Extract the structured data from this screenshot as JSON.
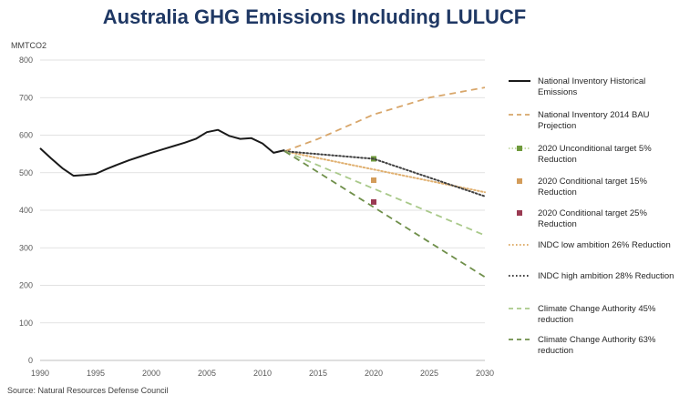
{
  "title": "Australia GHG Emissions Including LULUCF",
  "source": "Source: Natural Resources Defense Council",
  "chart_data": {
    "type": "line",
    "title": "Australia GHG Emissions Including LULUCF",
    "ylabel": "MMTCO2",
    "xlabel": "",
    "xlim": [
      1990,
      2030
    ],
    "ylim": [
      0,
      800
    ],
    "x_ticks": [
      1990,
      1995,
      2000,
      2005,
      2010,
      2015,
      2020,
      2025,
      2030
    ],
    "y_ticks": [
      0,
      100,
      200,
      300,
      400,
      500,
      600,
      700,
      800
    ],
    "grid": true,
    "legend_position": "right",
    "series": [
      {
        "name": "National Inventory Historical Emissions",
        "style": "solid",
        "color": "#1a1a1a",
        "kind": "line",
        "x": [
          1990,
          1991,
          1992,
          1993,
          1994,
          1995,
          1996,
          1997,
          1998,
          1999,
          2000,
          2001,
          2002,
          2003,
          2004,
          2005,
          2006,
          2007,
          2008,
          2009,
          2010,
          2011,
          2012
        ],
        "y": [
          565,
          538,
          512,
          492,
          494,
          497,
          510,
          522,
          533,
          543,
          553,
          562,
          571,
          580,
          590,
          608,
          614,
          598,
          590,
          592,
          578,
          553,
          560
        ]
      },
      {
        "name": "National Inventory 2014 BAU Projection",
        "style": "dash",
        "color": "#d8a66a",
        "kind": "line",
        "x": [
          2012,
          2015,
          2020,
          2025,
          2030
        ],
        "y": [
          557,
          590,
          655,
          700,
          727
        ]
      },
      {
        "name": "2020 Unconditional target 5% Reduction",
        "style": "marker",
        "color": "#6f9a3c",
        "kind": "point",
        "dotted": true,
        "x": [
          2020
        ],
        "y": [
          537
        ]
      },
      {
        "name": "2020 Conditional target 15% Reduction",
        "style": "marker",
        "color": "#d39c5a",
        "kind": "point",
        "x": [
          2020
        ],
        "y": [
          480
        ]
      },
      {
        "name": "2020 Conditional target 25% Reduction",
        "style": "marker",
        "color": "#9a3a52",
        "kind": "point",
        "x": [
          2020
        ],
        "y": [
          422
        ]
      },
      {
        "name": "INDC low ambition 26% Reduction",
        "style": "dot",
        "color": "#e0b070",
        "kind": "line",
        "x": [
          2012,
          2030
        ],
        "y": [
          557,
          448
        ]
      },
      {
        "name": "INDC high ambition 28% Reduction",
        "style": "dot",
        "color": "#404040",
        "kind": "line",
        "x": [
          2012,
          2020,
          2030
        ],
        "y": [
          557,
          537,
          437
        ]
      },
      {
        "name": "Climate Change Authority 45% reduction",
        "style": "dash",
        "color": "#a9c98a",
        "kind": "line",
        "x": [
          2012,
          2030
        ],
        "y": [
          557,
          333
        ]
      },
      {
        "name": "Climate Change Authority 63% reduction",
        "style": "dash",
        "color": "#6f8f4a",
        "kind": "line",
        "x": [
          2012,
          2030
        ],
        "y": [
          557,
          222
        ]
      }
    ]
  },
  "legend": [
    {
      "lines": [
        "National Inventory Historical",
        "Emissions"
      ]
    },
    {
      "lines": [
        "National Inventory 2014 BAU",
        "Projection"
      ]
    },
    {
      "lines": [
        "2020 Unconditional target 5%",
        "Reduction"
      ]
    },
    {
      "lines": [
        "2020 Conditional target 15%",
        "Reduction"
      ]
    },
    {
      "lines": [
        "2020 Conditional target 25%",
        "Reduction"
      ]
    },
    {
      "lines": [
        "INDC low ambition 26% Reduction"
      ]
    },
    {
      "lines": [
        "INDC high ambition 28% Reduction"
      ]
    },
    {
      "lines": [
        "Climate Change Authority 45%",
        "reduction"
      ]
    },
    {
      "lines": [
        "Climate Change Authority 63%",
        "reduction"
      ]
    }
  ]
}
